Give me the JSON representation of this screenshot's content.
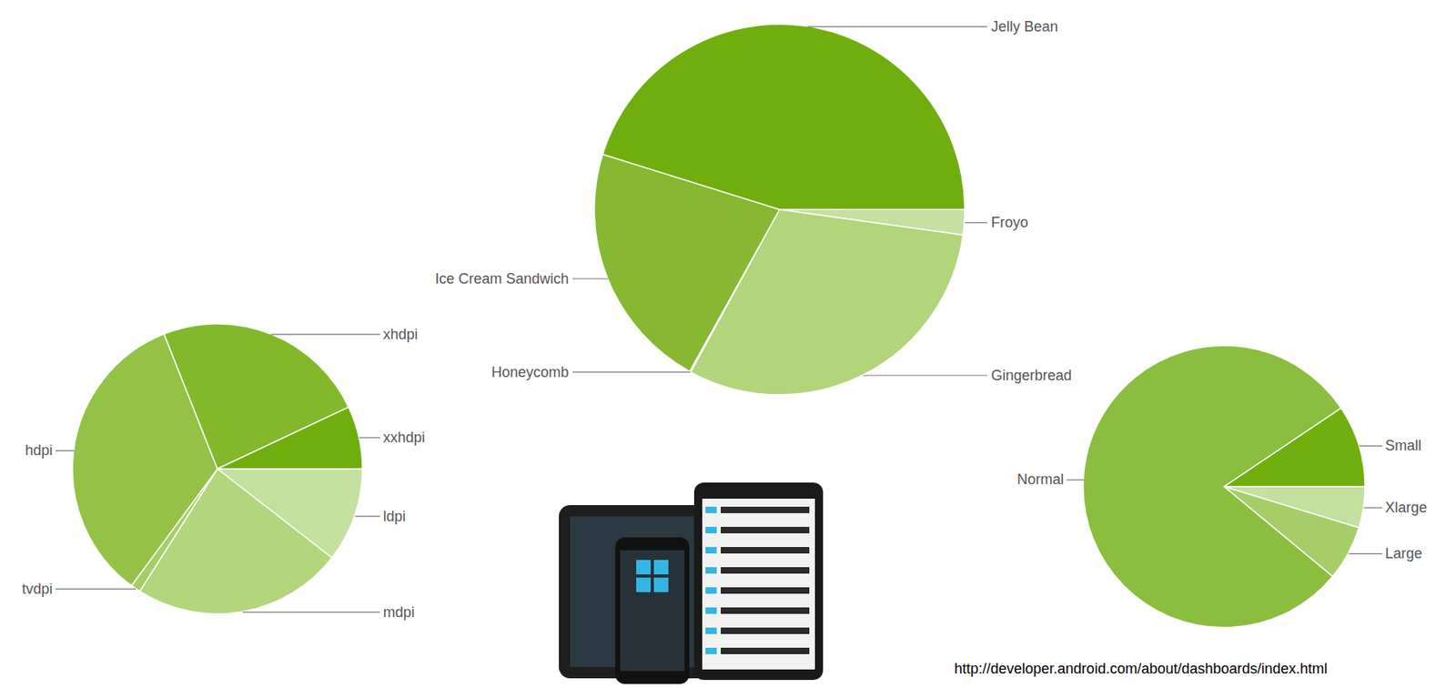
{
  "chart_data": [
    {
      "type": "pie",
      "categories": [
        "ldpi",
        "mdpi",
        "tvdpi",
        "hdpi",
        "xhdpi",
        "xxhdpi"
      ],
      "values": [
        10.5,
        23.5,
        1.1,
        33.9,
        24.0,
        7.0
      ],
      "colors": [
        "#c4e09e",
        "#b2d67c",
        "#a6ce68",
        "#93c246",
        "#82b82a",
        "#70ae0e"
      ]
    },
    {
      "type": "pie",
      "categories": [
        "Froyo",
        "Gingerbread",
        "Honeycomb",
        "Ice Cream Sandwich",
        "Jelly Bean"
      ],
      "values": [
        2.2,
        30.7,
        0.1,
        21.7,
        45.1
      ],
      "colors": [
        "#c5e0a0",
        "#b0d57a",
        "#9cc95a",
        "#86b832",
        "#70ae0e"
      ]
    },
    {
      "type": "pie",
      "categories": [
        "Xlarge",
        "Large",
        "Normal",
        "Small"
      ],
      "values": [
        4.7,
        6.3,
        79.6,
        9.4
      ],
      "colors": [
        "#c4e09e",
        "#a6ce68",
        "#8bbd3e",
        "#70ae0e"
      ]
    }
  ],
  "source": "http://developer.android.com/about/dashboards/index.html"
}
